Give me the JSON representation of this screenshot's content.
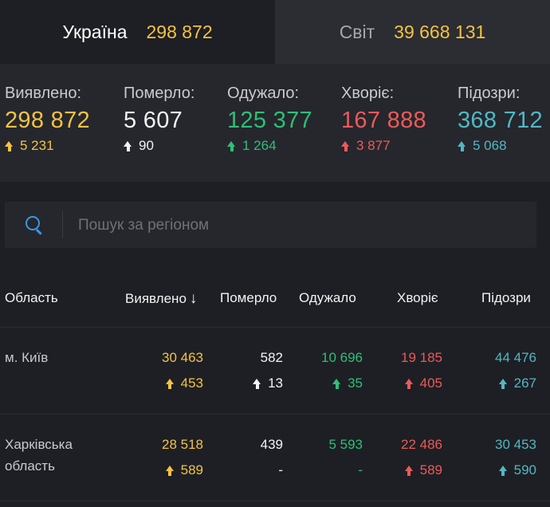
{
  "tabs": [
    {
      "name": "Україна",
      "value": "298 872"
    },
    {
      "name": "Світ",
      "value": "39 668 131"
    }
  ],
  "summary": [
    {
      "label": "Виявлено:",
      "value": "298 872",
      "delta": "5 231"
    },
    {
      "label": "Померло:",
      "value": "5 607",
      "delta": "90"
    },
    {
      "label": "Одужало:",
      "value": "125 377",
      "delta": "1 264"
    },
    {
      "label": "Хворіє:",
      "value": "167 888",
      "delta": "3 877"
    },
    {
      "label": "Підозри:",
      "value": "368 712",
      "delta": "5 068"
    }
  ],
  "search": {
    "placeholder": "Пошук за регіоном"
  },
  "table": {
    "headers": {
      "region": "Область",
      "detected": "Виявлено",
      "sort_arrow": "↓",
      "died": "Померло",
      "recovered": "Одужало",
      "sick": "Хворіє",
      "suspected": "Підозри"
    },
    "rows": [
      {
        "region_line1": "м. Київ",
        "region_line2": "",
        "detected": "30 463",
        "detected_delta": "453",
        "died": "582",
        "died_delta": "13",
        "recovered": "10 696",
        "recovered_delta": "35",
        "sick": "19 185",
        "sick_delta": "405",
        "suspected": "44 476",
        "suspected_delta": "267"
      },
      {
        "region_line1": "Харківська",
        "region_line2": "область",
        "detected": "28 518",
        "detected_delta": "589",
        "died": "439",
        "died_delta": "-",
        "recovered": "5 593",
        "recovered_delta": "-",
        "sick": "22 486",
        "sick_delta": "589",
        "suspected": "30 453",
        "suspected_delta": "590"
      }
    ]
  },
  "colors": {
    "detected": "#f5c242",
    "died": "#f2f2f2",
    "recovered": "#2fbf78",
    "sick": "#ec5a5a",
    "suspected": "#52b7c3"
  },
  "icons": {
    "search": "search-icon",
    "delta": "arrow-up-icon"
  }
}
